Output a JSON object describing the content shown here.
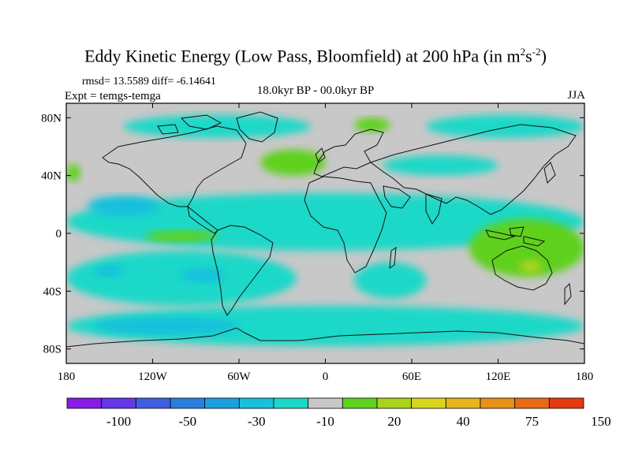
{
  "chart_data": {
    "type": "heatmap",
    "title_main": "Eddy Kinetic Energy (Low Pass, Bloomfield) at 200 hPa (in m",
    "title_exp1": "2",
    "title_mid": "s",
    "title_exp2": "-2",
    "title_end": ")",
    "stats": "rmsd= 13.5589 diff= -6.14641",
    "expt": "Expt = temgs-temga",
    "period": "18.0kyr BP - 00.0kyr BP",
    "season": "JJA",
    "x_ticks": [
      "180",
      "120W",
      "60W",
      "0",
      "60E",
      "120E",
      "180"
    ],
    "x_tick_values": [
      -180,
      -120,
      -60,
      0,
      60,
      120,
      180
    ],
    "y_ticks": [
      "80N",
      "40N",
      "0",
      "40S",
      "80S"
    ],
    "y_tick_values": [
      80,
      40,
      0,
      -40,
      -80
    ],
    "xlim": [
      -180,
      180
    ],
    "ylim": [
      -90,
      90
    ],
    "colorbar": {
      "labels": [
        "-100",
        "-50",
        "-30",
        "-10",
        "20",
        "40",
        "75",
        "150"
      ],
      "colors": [
        "#8a1ae6",
        "#6437e8",
        "#3f5fe0",
        "#2a7fdc",
        "#1aa0e0",
        "#19c0dd",
        "#1cd8c8",
        "#c8c8c8",
        "#5fd11e",
        "#a8d41c",
        "#d8d61c",
        "#e8b41c",
        "#e89018",
        "#e86a14",
        "#e63a10"
      ]
    },
    "field_regions": [
      {
        "class": 7,
        "lon": [
          -180,
          180
        ],
        "lat": [
          -90,
          90
        ]
      },
      {
        "class": 6,
        "lon": [
          -180,
          180
        ],
        "lat": [
          -12,
          28
        ]
      },
      {
        "class": 5,
        "lon": [
          -165,
          -115
        ],
        "lat": [
          12,
          26
        ]
      },
      {
        "class": 8,
        "lon": [
          -125,
          -75
        ],
        "lat": [
          -6,
          2
        ]
      },
      {
        "class": 8,
        "lon": [
          -45,
          0
        ],
        "lat": [
          40,
          58
        ]
      },
      {
        "class": 6,
        "lon": [
          -180,
          -20
        ],
        "lat": [
          -50,
          -12
        ]
      },
      {
        "class": 5,
        "lon": [
          -160,
          -140
        ],
        "lat": [
          -30,
          -22
        ]
      },
      {
        "class": 5,
        "lon": [
          -100,
          -70
        ],
        "lat": [
          -34,
          -24
        ]
      },
      {
        "class": 6,
        "lon": [
          -180,
          180
        ],
        "lat": [
          -78,
          -50
        ]
      },
      {
        "class": 5,
        "lon": [
          -160,
          -60
        ],
        "lat": [
          -70,
          -58
        ]
      },
      {
        "class": 6,
        "lon": [
          -140,
          -10
        ],
        "lat": [
          66,
          82
        ]
      },
      {
        "class": 6,
        "lon": [
          70,
          180
        ],
        "lat": [
          66,
          82
        ]
      },
      {
        "class": 8,
        "lon": [
          20,
          45
        ],
        "lat": [
          70,
          80
        ]
      },
      {
        "class": 6,
        "lon": [
          40,
          120
        ],
        "lat": [
          40,
          54
        ]
      },
      {
        "class": 8,
        "lon": [
          100,
          180
        ],
        "lat": [
          -30,
          10
        ]
      },
      {
        "class": 9,
        "lon": [
          135,
          150
        ],
        "lat": [
          -28,
          -18
        ]
      },
      {
        "class": 6,
        "lon": [
          20,
          70
        ],
        "lat": [
          -45,
          -20
        ]
      },
      {
        "class": 8,
        "lon": [
          -180,
          -170
        ],
        "lat": [
          36,
          48
        ]
      }
    ]
  }
}
